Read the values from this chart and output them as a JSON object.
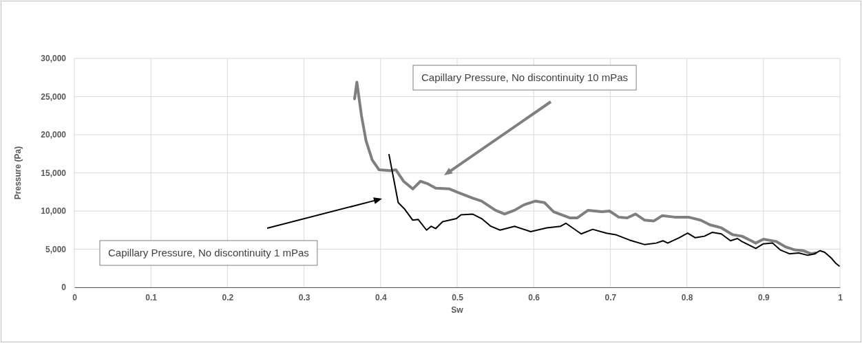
{
  "chart_data": {
    "type": "line",
    "xlabel": "Sw",
    "ylabel": "Pressure (Pa)",
    "xlim": [
      0,
      1
    ],
    "xticks": [
      0,
      0.1,
      0.2,
      0.3,
      0.4,
      0.5,
      0.6,
      0.7,
      0.8,
      0.9,
      1
    ],
    "ylim": [
      0,
      30000
    ],
    "yticks": [
      0,
      {
        "value": 5000,
        "label": "5,000"
      },
      {
        "value": 10000,
        "label": "10,000"
      },
      {
        "value": 15000,
        "label": "15,000"
      },
      {
        "value": 20000,
        "label": "20,000"
      },
      {
        "value": 25000,
        "label": "25,000"
      },
      {
        "value": 30000,
        "label": "30,000"
      }
    ],
    "grid": true,
    "marker": "none",
    "line_style": "solid",
    "series": [
      {
        "color": "#7f7f7f",
        "x": [
          0.366,
          0.369,
          0.375,
          0.381,
          0.389,
          0.398,
          0.413,
          0.42,
          0.43,
          0.442,
          0.452,
          0.461,
          0.472,
          0.49,
          0.502,
          0.52,
          0.532,
          0.55,
          0.562,
          0.575,
          0.587,
          0.602,
          0.614,
          0.626,
          0.647,
          0.657,
          0.671,
          0.689,
          0.699,
          0.711,
          0.722,
          0.733,
          0.745,
          0.757,
          0.768,
          0.784,
          0.802,
          0.818,
          0.83,
          0.845,
          0.86,
          0.872,
          0.884,
          0.89,
          0.9,
          0.917,
          0.929,
          0.941,
          0.952,
          0.962,
          0.968
        ],
        "values": [
          24700,
          26900,
          22500,
          19200,
          16700,
          15400,
          15300,
          15400,
          13900,
          12900,
          13900,
          13600,
          13000,
          12900,
          12400,
          11700,
          11300,
          10100,
          9600,
          10100,
          10800,
          11300,
          11100,
          9900,
          9100,
          9100,
          10100,
          9900,
          10000,
          9200,
          9100,
          9600,
          8800,
          8700,
          9400,
          9200,
          9200,
          8800,
          8200,
          7800,
          6900,
          6700,
          6100,
          5800,
          6300,
          6000,
          5300,
          4900,
          4800,
          4400,
          4500
        ]
      },
      {
        "color": "#000000",
        "x": [
          0.411,
          0.423,
          0.431,
          0.442,
          0.449,
          0.46,
          0.466,
          0.472,
          0.481,
          0.499,
          0.505,
          0.52,
          0.532,
          0.544,
          0.556,
          0.575,
          0.596,
          0.617,
          0.635,
          0.642,
          0.662,
          0.677,
          0.695,
          0.707,
          0.725,
          0.745,
          0.76,
          0.769,
          0.775,
          0.79,
          0.801,
          0.811,
          0.823,
          0.833,
          0.845,
          0.857,
          0.866,
          0.872,
          0.89,
          0.9,
          0.912,
          0.922,
          0.934,
          0.946,
          0.958,
          0.967,
          0.974,
          0.98,
          0.989,
          0.994,
          0.999
        ],
        "values": [
          17400,
          11100,
          10300,
          8800,
          8900,
          7500,
          8000,
          7700,
          8600,
          9000,
          9500,
          9600,
          9000,
          8000,
          7500,
          8000,
          7300,
          7800,
          8000,
          8400,
          7000,
          7600,
          7100,
          6900,
          6200,
          5600,
          5800,
          6100,
          5800,
          6500,
          7100,
          6500,
          6700,
          7200,
          7000,
          6100,
          6400,
          6000,
          5100,
          5700,
          5800,
          4900,
          4400,
          4500,
          4200,
          4400,
          4800,
          4600,
          3800,
          3200,
          2800
        ]
      }
    ],
    "annotations": [
      "Capillary Pressure, No discontinuity 10 mPas",
      "Capillary Pressure, No discontinuity 1 mPas"
    ]
  }
}
